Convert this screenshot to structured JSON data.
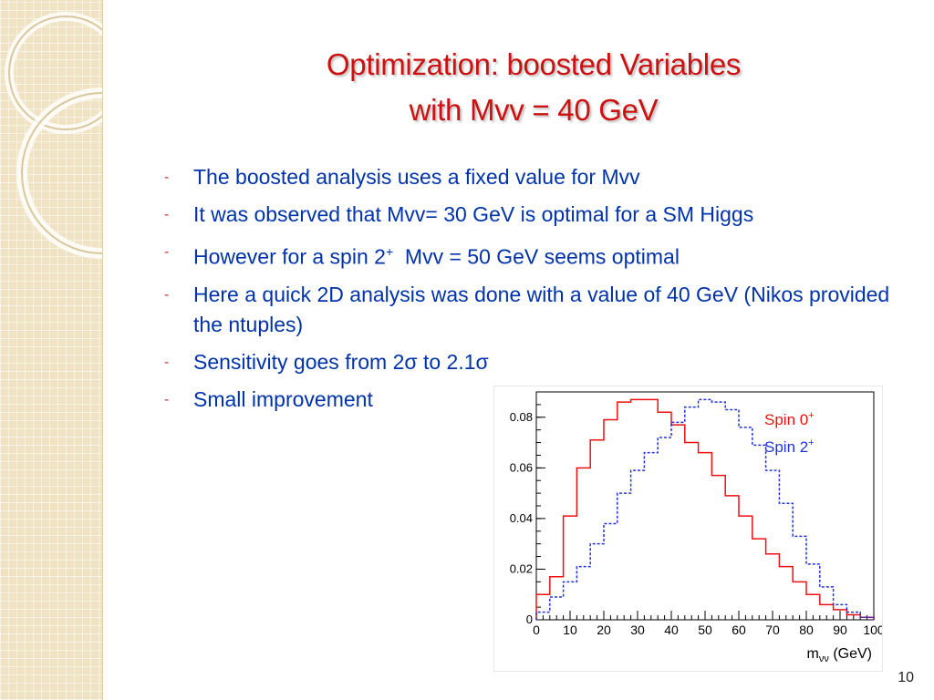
{
  "slide": {
    "title_line1": "Optimization: boosted Variables",
    "title_line2": "with Mvv = 40 GeV",
    "page_number": "10"
  },
  "bullets": [
    {
      "marker": "-",
      "text": "The boosted analysis uses a fixed value for Mvv"
    },
    {
      "marker": "-",
      "text": "It was observed that Mvv= 30 GeV is optimal for a SM Higgs"
    },
    {
      "marker": "-",
      "text_pre": "However for a spin 2",
      "sup": "+",
      "text_post": "  Mvv = 50 GeV seems optimal"
    },
    {
      "marker": "-",
      "text": "Here a quick 2D analysis was done with a value of 40 GeV (Nikos provided the ntuples)"
    },
    {
      "marker": "-",
      "text": "Sensitivity goes from 2σ to 2.1σ"
    },
    {
      "marker": "-",
      "text": "Small improvement"
    }
  ],
  "chart_data": {
    "type": "line",
    "style": "step histogram",
    "title": "",
    "xlabel": "m",
    "xlabel_sub": "νν",
    "xlabel_unit": "(GeV)",
    "ylabel": "",
    "xlim": [
      0,
      100
    ],
    "ylim": [
      0,
      0.09
    ],
    "x_ticks": [
      "0",
      "10",
      "20",
      "30",
      "40",
      "50",
      "60",
      "70",
      "80",
      "90",
      "100"
    ],
    "y_ticks": [
      "0",
      "0.02",
      "0.04",
      "0.06",
      "0.08"
    ],
    "bin_edges": [
      0,
      4,
      8,
      12,
      16,
      20,
      24,
      28,
      32,
      36,
      40,
      44,
      48,
      52,
      56,
      60,
      64,
      68,
      72,
      76,
      80,
      84,
      88,
      92,
      96,
      100
    ],
    "series": [
      {
        "name": "Spin 0+",
        "legend_text": "Spin 0",
        "legend_sup": "+",
        "color": "#ee1111",
        "dash": false,
        "values": [
          0.01,
          0.017,
          0.041,
          0.06,
          0.071,
          0.079,
          0.086,
          0.087,
          0.087,
          0.082,
          0.077,
          0.07,
          0.066,
          0.057,
          0.049,
          0.041,
          0.032,
          0.026,
          0.021,
          0.015,
          0.01,
          0.006,
          0.004,
          0.002,
          0.001
        ]
      },
      {
        "name": "Spin 2+",
        "legend_text": "Spin 2",
        "legend_sup": "+",
        "color": "#2233dd",
        "dash": true,
        "values": [
          0.003,
          0.009,
          0.015,
          0.021,
          0.03,
          0.038,
          0.05,
          0.059,
          0.066,
          0.072,
          0.078,
          0.084,
          0.087,
          0.086,
          0.083,
          0.076,
          0.069,
          0.059,
          0.046,
          0.033,
          0.022,
          0.013,
          0.006,
          0.003,
          0.001
        ]
      }
    ],
    "grid": false,
    "legend_position": "top-right"
  }
}
